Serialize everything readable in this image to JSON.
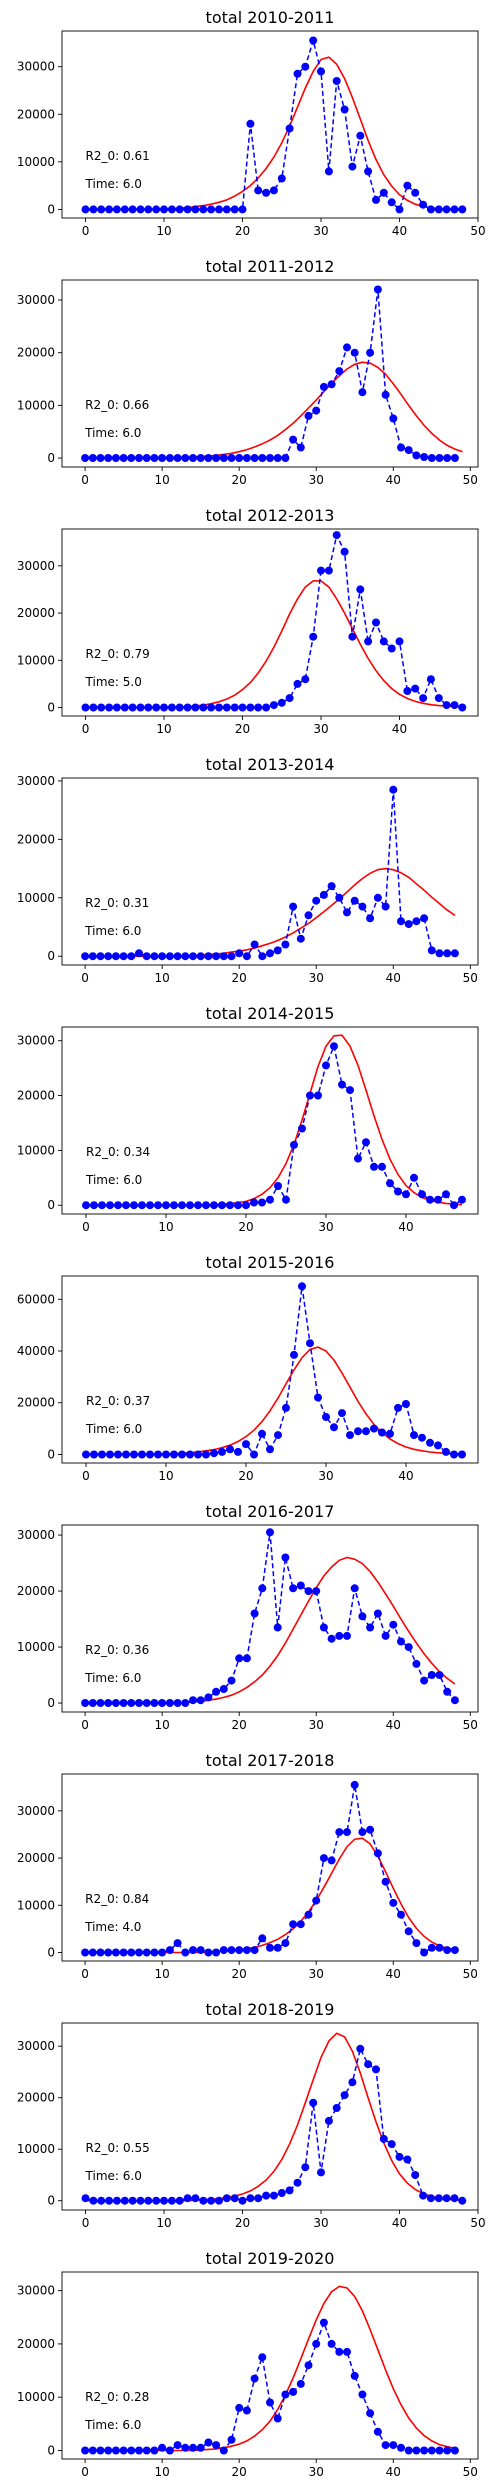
{
  "chart_data": [
    {
      "type": "line",
      "title": "total 2010-2011",
      "annotations": [
        "R2_0: 0.61",
        "Time: 6.0"
      ],
      "xlim": [
        -3,
        50
      ],
      "ylim": [
        -1800,
        37500
      ],
      "xticks": [
        0,
        10,
        20,
        30,
        40,
        50
      ],
      "yticks": [
        0,
        10000,
        20000,
        30000
      ],
      "observed": [
        0,
        0,
        0,
        0,
        0,
        0,
        0,
        0,
        0,
        0,
        0,
        0,
        0,
        0,
        0,
        0,
        0,
        0,
        0,
        0,
        0,
        18000,
        4000,
        3500,
        4000,
        6500,
        17000,
        28500,
        30000,
        35500,
        29000,
        8000,
        27000,
        21000,
        9000,
        15500,
        8000,
        2000,
        3500,
        1500,
        0,
        5000,
        3500,
        1000,
        0,
        0,
        0,
        0,
        0
      ],
      "fit": [
        0,
        0,
        0,
        0,
        0,
        0,
        0,
        0,
        0,
        50,
        100,
        200,
        300,
        400,
        600,
        800,
        1100,
        1500,
        2000,
        2800,
        3800,
        5000,
        6600,
        8600,
        11000,
        14000,
        17500,
        21500,
        25500,
        29000,
        31500,
        32000,
        30500,
        27500,
        23500,
        19000,
        14500,
        10500,
        7300,
        4900,
        3100,
        1900,
        1100,
        650,
        350,
        200,
        100,
        50,
        20
      ],
      "colors": {
        "observed": "#0000ff",
        "fit": "#ff0000"
      }
    },
    {
      "type": "line",
      "title": "total 2011-2012",
      "annotations": [
        "R2_0: 0.66",
        "Time: 6.0"
      ],
      "xlim": [
        -3,
        51
      ],
      "ylim": [
        -1700,
        33800
      ],
      "xticks": [
        0,
        10,
        20,
        30,
        40,
        50
      ],
      "yticks": [
        0,
        10000,
        20000,
        30000
      ],
      "observed": [
        0,
        0,
        0,
        0,
        0,
        0,
        0,
        0,
        0,
        0,
        0,
        0,
        0,
        0,
        0,
        0,
        0,
        0,
        0,
        0,
        0,
        0,
        0,
        0,
        0,
        0,
        0,
        3500,
        2000,
        8000,
        9000,
        13500,
        14000,
        16500,
        21000,
        20000,
        12500,
        20000,
        32000,
        12000,
        7500,
        2000,
        1500,
        500,
        200,
        0,
        0,
        0,
        0
      ],
      "fit": [
        0,
        0,
        0,
        0,
        0,
        0,
        0,
        0,
        0,
        0,
        0,
        50,
        100,
        150,
        200,
        300,
        400,
        500,
        700,
        900,
        1200,
        1600,
        2100,
        2700,
        3400,
        4300,
        5400,
        6600,
        8000,
        9500,
        11000,
        12600,
        14200,
        15600,
        16900,
        17800,
        18200,
        18000,
        17200,
        15900,
        14100,
        12100,
        10000,
        8000,
        6200,
        4700,
        3400,
        2400,
        1700,
        1200
      ],
      "colors": {
        "observed": "#0000ff",
        "fit": "#ff0000"
      }
    },
    {
      "type": "line",
      "title": "total 2012-2013",
      "annotations": [
        "R2_0: 0.79",
        "Time: 5.0"
      ],
      "xlim": [
        -3,
        50
      ],
      "ylim": [
        -1800,
        37800
      ],
      "xticks": [
        0,
        10,
        20,
        30,
        40
      ],
      "yticks": [
        0,
        10000,
        20000,
        30000
      ],
      "observed": [
        0,
        0,
        0,
        0,
        0,
        0,
        0,
        0,
        0,
        0,
        0,
        0,
        0,
        0,
        0,
        0,
        0,
        0,
        0,
        0,
        0,
        0,
        0,
        0,
        500,
        1000,
        2000,
        5000,
        6000,
        15000,
        29000,
        29000,
        36500,
        33000,
        15000,
        25000,
        14000,
        18000,
        14000,
        12500,
        14000,
        3500,
        4000,
        2000,
        6000,
        2000,
        500,
        500,
        0
      ],
      "fit": [
        0,
        0,
        0,
        0,
        0,
        0,
        0,
        0,
        0,
        0,
        0,
        0,
        100,
        200,
        300,
        500,
        800,
        1200,
        1800,
        2600,
        3800,
        5300,
        7300,
        9800,
        12800,
        16200,
        19800,
        23000,
        25500,
        26800,
        26800,
        25500,
        23000,
        20000,
        16700,
        13400,
        10400,
        7800,
        5700,
        4000,
        2800,
        1900,
        1300,
        900,
        600,
        400,
        300,
        200,
        100
      ],
      "colors": {
        "observed": "#0000ff",
        "fit": "#ff0000"
      }
    },
    {
      "type": "line",
      "title": "total 2013-2014",
      "annotations": [
        "R2_0: 0.31",
        "Time: 6.0"
      ],
      "xlim": [
        -3,
        51
      ],
      "ylim": [
        -1500,
        30500
      ],
      "xticks": [
        0,
        10,
        20,
        30,
        40,
        50
      ],
      "yticks": [
        0,
        10000,
        20000,
        30000
      ],
      "observed": [
        0,
        0,
        0,
        0,
        0,
        0,
        0,
        500,
        0,
        0,
        0,
        0,
        0,
        0,
        0,
        0,
        0,
        0,
        0,
        0,
        500,
        0,
        2000,
        0,
        500,
        1000,
        2000,
        8500,
        3000,
        7000,
        9500,
        10500,
        12000,
        10000,
        7500,
        9500,
        8500,
        6500,
        10000,
        8500,
        28500,
        6000,
        5500,
        6000,
        6500,
        1000,
        500,
        500,
        500
      ],
      "fit": [
        0,
        0,
        0,
        0,
        0,
        0,
        0,
        0,
        0,
        0,
        0,
        0,
        0,
        0,
        100,
        200,
        300,
        400,
        500,
        700,
        900,
        1100,
        1400,
        1800,
        2200,
        2700,
        3300,
        4000,
        4800,
        5600,
        6600,
        7600,
        8700,
        9800,
        11000,
        12200,
        13300,
        14200,
        14800,
        15000,
        14800,
        14300,
        13500,
        12400,
        11300,
        10100,
        9000,
        7900,
        7000
      ],
      "colors": {
        "observed": "#0000ff",
        "fit": "#ff0000"
      }
    },
    {
      "type": "line",
      "title": "total 2014-2015",
      "annotations": [
        "R2_0: 0.34",
        "Time: 6.0"
      ],
      "xlim": [
        -3,
        49
      ],
      "ylim": [
        -1600,
        32500
      ],
      "xticks": [
        0,
        10,
        20,
        30,
        40
      ],
      "yticks": [
        0,
        10000,
        20000,
        30000
      ],
      "observed": [
        0,
        0,
        0,
        0,
        0,
        0,
        0,
        0,
        0,
        0,
        0,
        0,
        0,
        0,
        0,
        0,
        0,
        0,
        0,
        0,
        0,
        500,
        500,
        1000,
        3500,
        1000,
        11000,
        14000,
        20000,
        20000,
        25500,
        29000,
        22000,
        21000,
        8500,
        11500,
        7000,
        7000,
        4000,
        2500,
        2000,
        5000,
        2000,
        1000,
        1000,
        2000,
        0,
        1000
      ],
      "fit": [
        0,
        0,
        0,
        0,
        0,
        0,
        0,
        0,
        0,
        0,
        0,
        0,
        0,
        0,
        0,
        0,
        100,
        200,
        300,
        500,
        700,
        1200,
        2000,
        3200,
        5000,
        7600,
        11100,
        15500,
        20400,
        25300,
        29000,
        30900,
        31000,
        29000,
        25500,
        21000,
        16300,
        12000,
        8400,
        5600,
        3600,
        2300,
        1400,
        900,
        550,
        330,
        200,
        100
      ],
      "colors": {
        "observed": "#0000ff",
        "fit": "#ff0000"
      }
    },
    {
      "type": "line",
      "title": "total 2015-2016",
      "annotations": [
        "R2_0: 0.37",
        "Time: 6.0"
      ],
      "xlim": [
        -3,
        49
      ],
      "ylim": [
        -3300,
        69000
      ],
      "xticks": [
        0,
        10,
        20,
        30,
        40
      ],
      "yticks": [
        0,
        20000,
        40000,
        60000
      ],
      "observed": [
        0,
        0,
        0,
        0,
        0,
        0,
        0,
        0,
        0,
        0,
        0,
        0,
        0,
        0,
        0,
        0,
        500,
        1000,
        2000,
        1000,
        4000,
        0,
        8000,
        2000,
        7500,
        18000,
        38500,
        65000,
        43000,
        22000,
        14500,
        10500,
        16000,
        7500,
        9000,
        9000,
        10000,
        8500,
        8000,
        18000,
        19500,
        7500,
        6500,
        4500,
        3500,
        1000,
        0,
        0
      ],
      "fit": [
        0,
        0,
        0,
        0,
        0,
        0,
        0,
        0,
        0,
        100,
        200,
        300,
        500,
        700,
        1000,
        1400,
        1900,
        2600,
        3600,
        5000,
        6900,
        9400,
        12700,
        16900,
        21800,
        27300,
        32700,
        37400,
        40600,
        41500,
        40000,
        36500,
        31500,
        26000,
        20500,
        15700,
        11600,
        8400,
        6000,
        4200,
        2900,
        2000,
        1400,
        950,
        650,
        450,
        300,
        200
      ],
      "colors": {
        "observed": "#0000ff",
        "fit": "#ff0000"
      }
    },
    {
      "type": "line",
      "title": "total 2016-2017",
      "annotations": [
        "R2_0: 0.36",
        "Time: 6.0"
      ],
      "xlim": [
        -3,
        51
      ],
      "ylim": [
        -1600,
        31800
      ],
      "xticks": [
        0,
        10,
        20,
        30,
        40,
        50
      ],
      "yticks": [
        0,
        10000,
        20000,
        30000
      ],
      "observed": [
        0,
        0,
        0,
        0,
        0,
        0,
        0,
        0,
        0,
        0,
        0,
        0,
        0,
        0,
        500,
        500,
        1000,
        2000,
        2500,
        4000,
        8000,
        8000,
        16000,
        20500,
        30500,
        13500,
        26000,
        20500,
        21000,
        20000,
        20000,
        13500,
        11500,
        12000,
        12000,
        20500,
        15500,
        13500,
        16000,
        12000,
        14000,
        11000,
        10000,
        7000,
        4000,
        5000,
        5000,
        2000,
        500
      ],
      "fit": [
        0,
        0,
        0,
        0,
        0,
        0,
        0,
        0,
        0,
        0,
        0,
        0,
        0,
        100,
        200,
        300,
        500,
        700,
        1000,
        1400,
        2000,
        2800,
        3800,
        5000,
        6600,
        8500,
        10700,
        13200,
        15700,
        18200,
        20600,
        22700,
        24300,
        25500,
        26000,
        25700,
        24900,
        23500,
        21600,
        19500,
        17300,
        15000,
        12800,
        10700,
        8800,
        7100,
        5600,
        4400,
        3400
      ],
      "colors": {
        "observed": "#0000ff",
        "fit": "#ff0000"
      }
    },
    {
      "type": "line",
      "title": "total 2017-2018",
      "annotations": [
        "R2_0: 0.84",
        "Time: 4.0"
      ],
      "xlim": [
        -3,
        51
      ],
      "ylim": [
        -1800,
        37800
      ],
      "xticks": [
        0,
        10,
        20,
        30,
        40,
        50
      ],
      "yticks": [
        0,
        10000,
        20000,
        30000
      ],
      "observed": [
        0,
        0,
        0,
        0,
        0,
        0,
        0,
        0,
        0,
        0,
        0,
        500,
        2000,
        0,
        500,
        500,
        0,
        0,
        500,
        500,
        500,
        500,
        500,
        3000,
        1000,
        1000,
        2000,
        6000,
        6000,
        8000,
        11000,
        20000,
        19500,
        25500,
        25500,
        35500,
        25500,
        26000,
        21000,
        15000,
        10500,
        8000,
        4500,
        2000,
        0,
        1000,
        1000,
        500,
        500
      ],
      "fit": [
        0,
        0,
        0,
        0,
        0,
        0,
        0,
        0,
        0,
        0,
        0,
        0,
        0,
        0,
        0,
        0,
        100,
        200,
        300,
        400,
        600,
        800,
        1100,
        1500,
        2100,
        2800,
        3800,
        5000,
        6600,
        8600,
        11000,
        13800,
        16800,
        19800,
        22400,
        24000,
        24200,
        23000,
        20400,
        17100,
        13600,
        10300,
        7400,
        5100,
        3400,
        2200,
        1400,
        900,
        550
      ],
      "colors": {
        "observed": "#0000ff",
        "fit": "#ff0000"
      }
    },
    {
      "type": "line",
      "title": "total 2018-2019",
      "annotations": [
        "R2_0: 0.55",
        "Time: 6.0"
      ],
      "xlim": [
        -3,
        50
      ],
      "ylim": [
        -1800,
        34500
      ],
      "xticks": [
        0,
        10,
        20,
        30,
        40,
        50
      ],
      "yticks": [
        0,
        10000,
        20000,
        30000
      ],
      "observed": [
        500,
        0,
        0,
        0,
        0,
        0,
        0,
        0,
        0,
        0,
        0,
        0,
        0,
        500,
        500,
        0,
        0,
        0,
        500,
        500,
        0,
        500,
        500,
        1000,
        1000,
        1500,
        2000,
        3500,
        6500,
        19000,
        5500,
        15500,
        18000,
        20500,
        23000,
        29500,
        26500,
        25500,
        12000,
        11000,
        8500,
        8000,
        5000,
        1000,
        500,
        500,
        500,
        500,
        0
      ],
      "fit": [
        0,
        0,
        0,
        0,
        0,
        0,
        0,
        0,
        0,
        0,
        0,
        0,
        0,
        0,
        100,
        200,
        300,
        400,
        600,
        900,
        1300,
        1900,
        2800,
        4000,
        5700,
        8000,
        11000,
        14700,
        19000,
        23500,
        27800,
        31000,
        32500,
        31800,
        29000,
        24800,
        20000,
        15300,
        11200,
        7800,
        5200,
        3400,
        2200,
        1400,
        850,
        500,
        300,
        150,
        80
      ],
      "colors": {
        "observed": "#0000ff",
        "fit": "#ff0000"
      }
    },
    {
      "type": "line",
      "title": "total 2019-2020",
      "annotations": [
        "R2_0: 0.28",
        "Time: 6.0"
      ],
      "xlim": [
        -3,
        51
      ],
      "ylim": [
        -1600,
        33500
      ],
      "xticks": [
        0,
        10,
        20,
        30,
        40,
        50
      ],
      "yticks": [
        0,
        10000,
        20000,
        30000
      ],
      "observed": [
        0,
        0,
        0,
        0,
        0,
        0,
        0,
        0,
        0,
        0,
        500,
        0,
        1000,
        500,
        500,
        500,
        1500,
        1000,
        0,
        2000,
        8000,
        7500,
        13500,
        17500,
        9000,
        6000,
        10500,
        11000,
        12500,
        16000,
        20000,
        24000,
        20000,
        18500,
        18500,
        14000,
        10500,
        7000,
        3500,
        1000,
        1000,
        500,
        0,
        0,
        0,
        0,
        0,
        0,
        0
      ],
      "fit": [
        0,
        0,
        0,
        0,
        0,
        0,
        0,
        0,
        0,
        0,
        0,
        0,
        0,
        0,
        0,
        100,
        200,
        300,
        500,
        800,
        1200,
        1800,
        2700,
        3900,
        5500,
        7700,
        10400,
        13600,
        17200,
        20900,
        24500,
        27600,
        29800,
        30800,
        30500,
        28900,
        26200,
        22700,
        18900,
        15100,
        11600,
        8600,
        6100,
        4200,
        2800,
        1800,
        1100,
        700,
        400
      ],
      "colors": {
        "observed": "#0000ff",
        "fit": "#ff0000"
      }
    }
  ]
}
